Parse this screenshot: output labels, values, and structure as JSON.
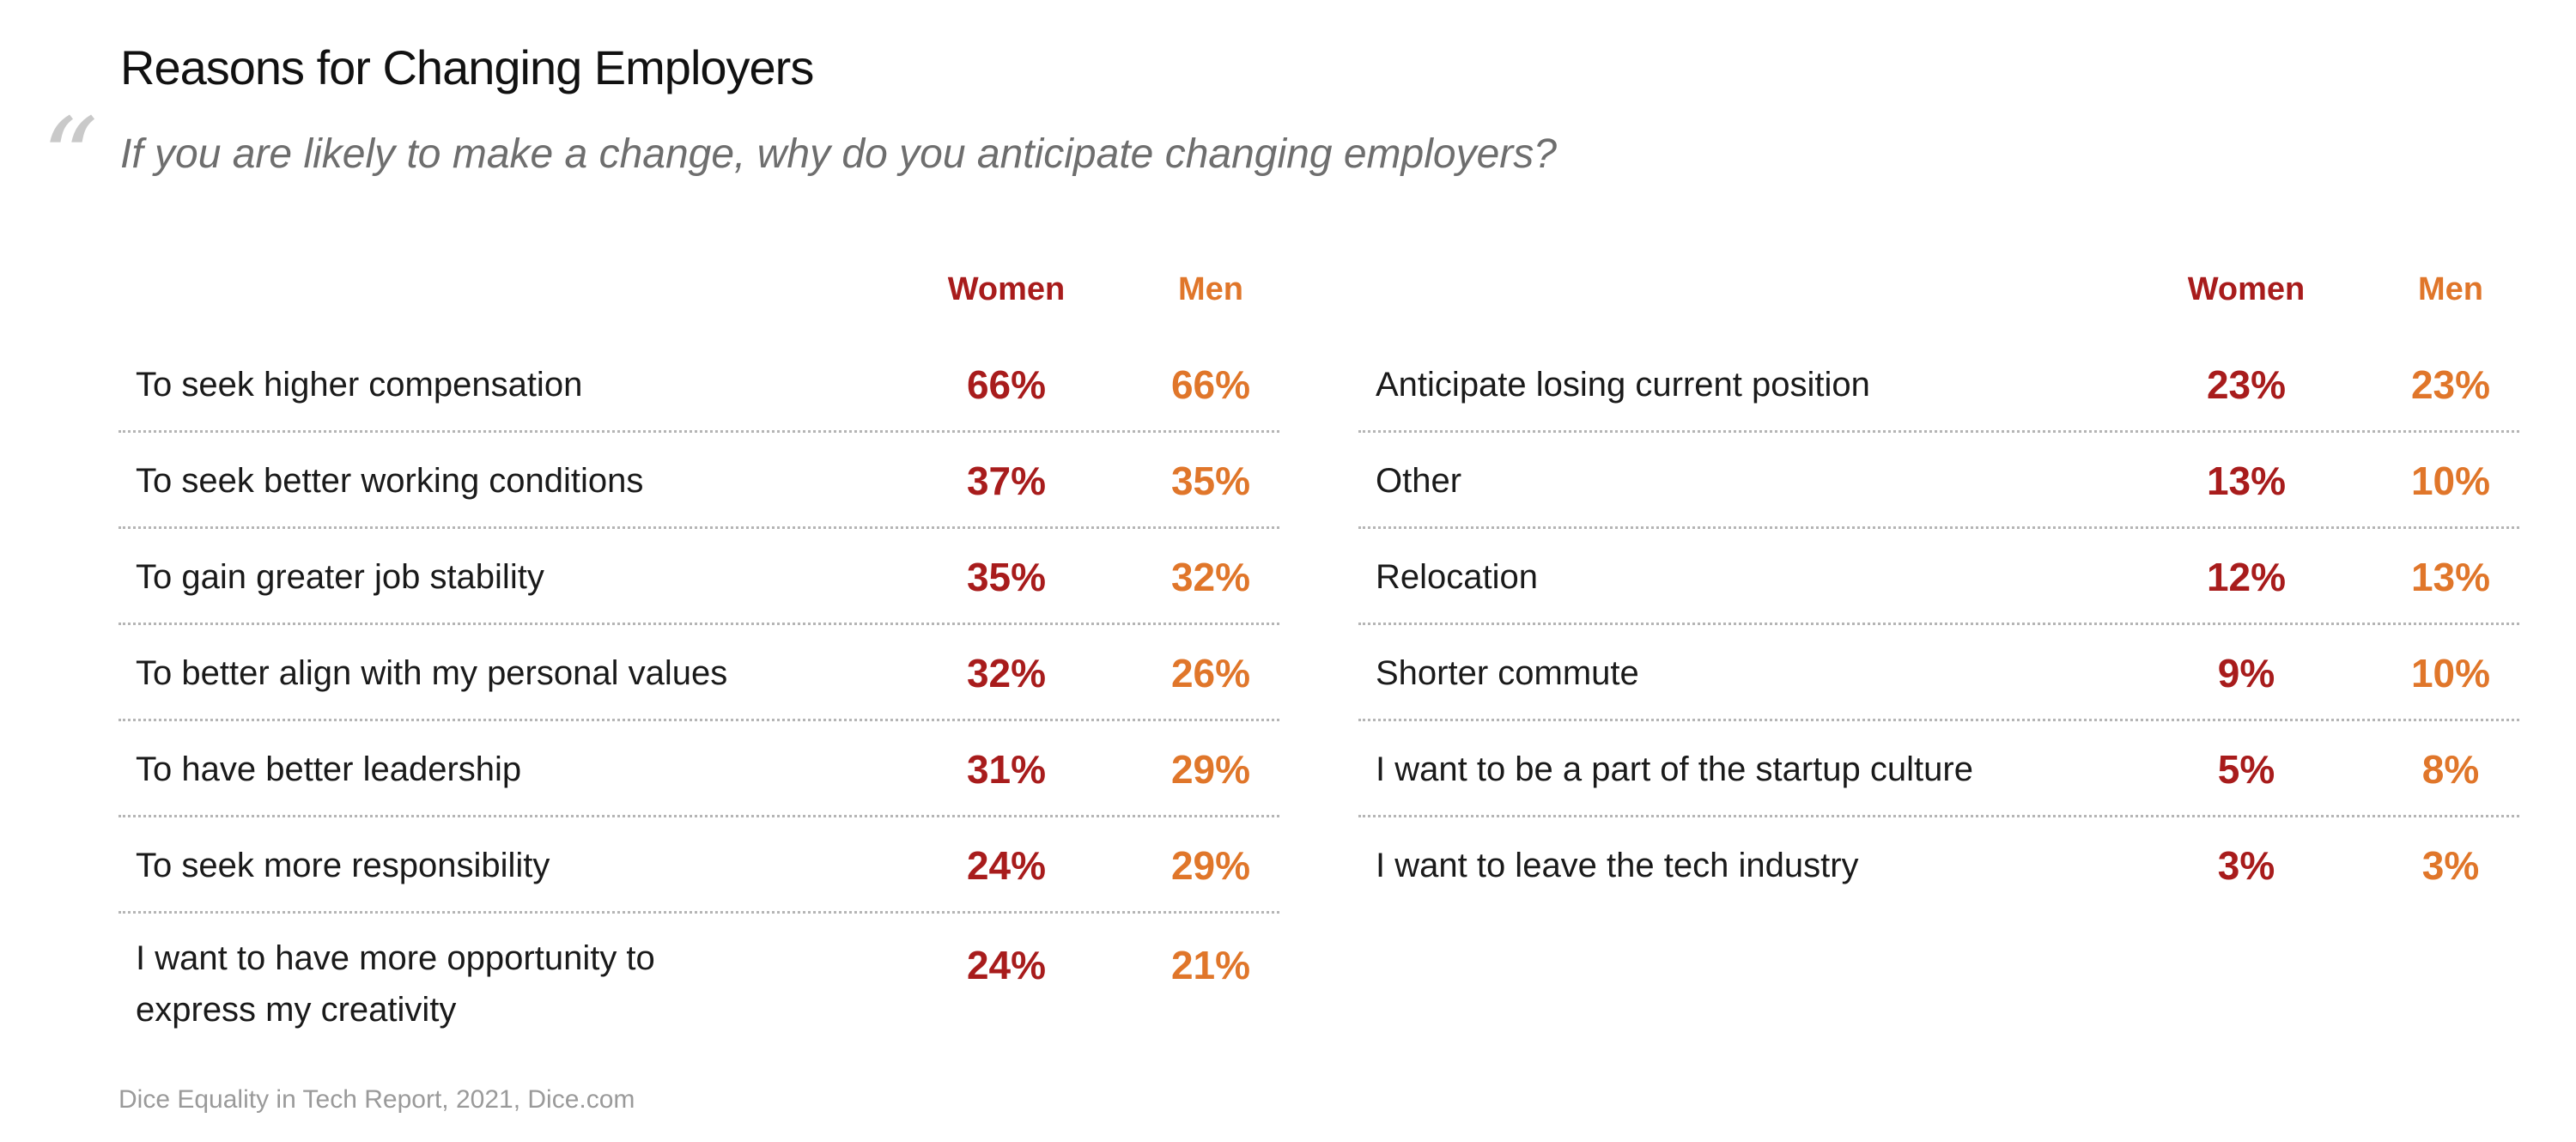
{
  "title": "Reasons for Changing Employers",
  "subtitle": "If you are likely to make a change, why do you anticipate changing employers?",
  "quote_mark": "“",
  "source": "Dice Equality in Tech Report, 2021, Dice.com",
  "colors": {
    "women": "#a81c1c",
    "men": "#e0762a",
    "divider": "#b5b5b5",
    "subtitle": "#6e6e6e"
  },
  "chart_data": {
    "type": "table",
    "columns": [
      "Women",
      "Men"
    ],
    "left": [
      {
        "reason": "To seek higher compensation",
        "women": "66%",
        "men": "66%"
      },
      {
        "reason": "To seek better working conditions",
        "women": "37%",
        "men": "35%"
      },
      {
        "reason": "To gain greater job stability",
        "women": "35%",
        "men": "32%"
      },
      {
        "reason": "To better align with my personal values",
        "women": "32%",
        "men": "26%"
      },
      {
        "reason": "To have better leadership",
        "women": "31%",
        "men": "29%"
      },
      {
        "reason": "To seek more responsibility",
        "women": "24%",
        "men": "29%"
      },
      {
        "reason": "I want to have more opportunity to express my creativity",
        "women": "24%",
        "men": "21%"
      }
    ],
    "right": [
      {
        "reason": "Anticipate losing current position",
        "women": "23%",
        "men": "23%"
      },
      {
        "reason": "Other",
        "women": "13%",
        "men": "10%"
      },
      {
        "reason": "Relocation",
        "women": "12%",
        "men": "13%"
      },
      {
        "reason": "Shorter commute",
        "women": "9%",
        "men": "10%"
      },
      {
        "reason": "I want to be a part of the startup culture",
        "women": "5%",
        "men": "8%"
      },
      {
        "reason": "I want to leave the tech industry",
        "women": "3%",
        "men": "3%"
      }
    ]
  }
}
